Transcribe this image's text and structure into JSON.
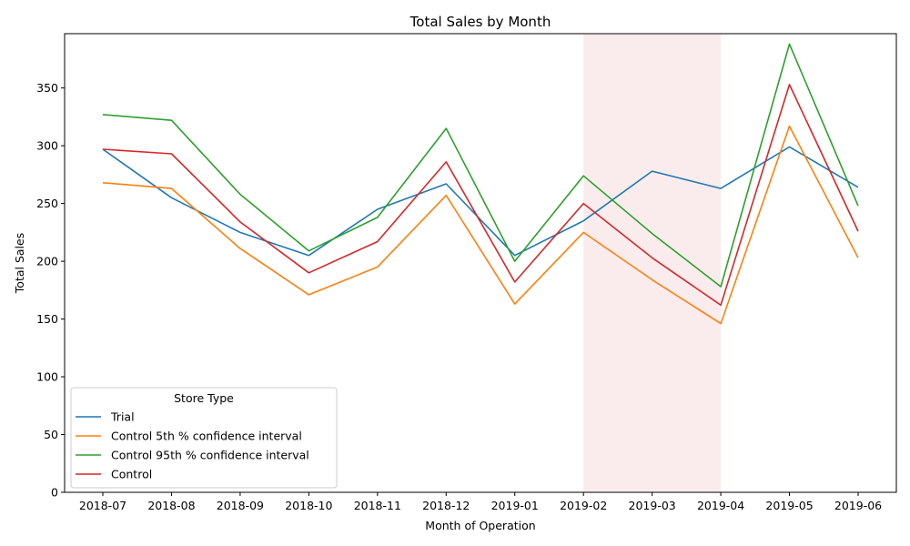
{
  "chart_data": {
    "type": "line",
    "title": "Total Sales by Month",
    "xlabel": "Month of Operation",
    "ylabel": "Total Sales",
    "categories": [
      "2018-07",
      "2018-08",
      "2018-09",
      "2018-10",
      "2018-11",
      "2018-12",
      "2019-01",
      "2019-02",
      "2019-03",
      "2019-04",
      "2019-05",
      "2019-06"
    ],
    "ylim": [
      0,
      397
    ],
    "yticks": [
      0,
      50,
      100,
      150,
      200,
      250,
      300,
      350
    ],
    "grid": false,
    "highlight_span": {
      "from": "2019-02",
      "to": "2019-04",
      "color": "#f5d5d5"
    },
    "legend": {
      "title": "Store Type",
      "position": "lower-left"
    },
    "series": [
      {
        "name": "Trial",
        "color": "#1f77b4",
        "values": [
          297,
          255,
          225,
          205,
          245,
          267,
          205,
          235,
          278,
          263,
          299,
          264
        ]
      },
      {
        "name": "Control 5th % confidence interval",
        "color": "#ff7f0e",
        "values": [
          268,
          263,
          211,
          171,
          195,
          257,
          163,
          225,
          184,
          146,
          317,
          203
        ]
      },
      {
        "name": "Control 95th % confidence interval",
        "color": "#2ca02c",
        "values": [
          327,
          322,
          258,
          209,
          238,
          315,
          200,
          274,
          224,
          178,
          388,
          248
        ]
      },
      {
        "name": "Control",
        "color": "#d62728",
        "values": [
          297,
          293,
          234,
          190,
          217,
          286,
          182,
          250,
          203,
          162,
          353,
          226
        ]
      }
    ]
  }
}
